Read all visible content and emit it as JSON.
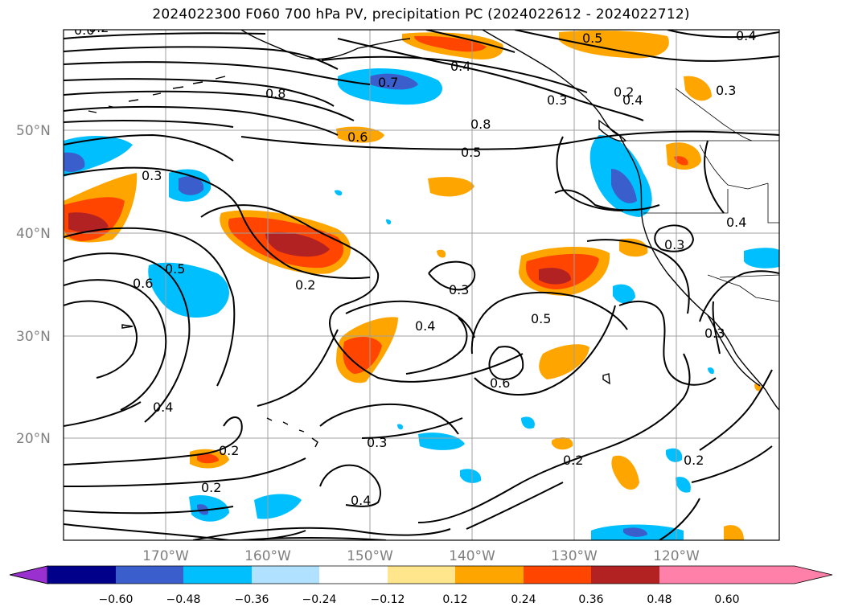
{
  "title": "2024022300 F060 700 hPa PV, precipitation PC (2024022612 - 2024022712)",
  "lat_labels": [
    "50°N",
    "40°N",
    "30°N",
    "20°N"
  ],
  "lon_labels": [
    "170°W",
    "160°W",
    "150°W",
    "140°W",
    "130°W",
    "120°W"
  ],
  "contour_labels": [
    "0.6",
    "0.5",
    "0.4",
    "0.7",
    "0.8",
    "0.4",
    "0.3",
    "0.8",
    "0.6",
    "0.5",
    "0.3",
    "0.4",
    "0.3",
    "0.2",
    "0.6",
    "0.5",
    "0.2",
    "0.3",
    "0.4",
    "0.5",
    "0.3",
    "0.4",
    "0.6",
    "0.4",
    "0.3",
    "0.2",
    "0.2",
    "0.2",
    "0.3",
    "0.4",
    "0.2",
    "0.2"
  ],
  "colorbar": {
    "ticks": [
      "−0.60",
      "−0.48",
      "−0.36",
      "−0.24",
      "−0.12",
      "0.12",
      "0.24",
      "0.36",
      "0.48",
      "0.60"
    ],
    "colors": [
      "#9b30d0",
      "#00008b",
      "#3a5fcd",
      "#00bfff",
      "#b0e2ff",
      "#ffffff",
      "#ffe68c",
      "#ffa500",
      "#ff4500",
      "#b22222",
      "#ff80a8"
    ]
  }
}
